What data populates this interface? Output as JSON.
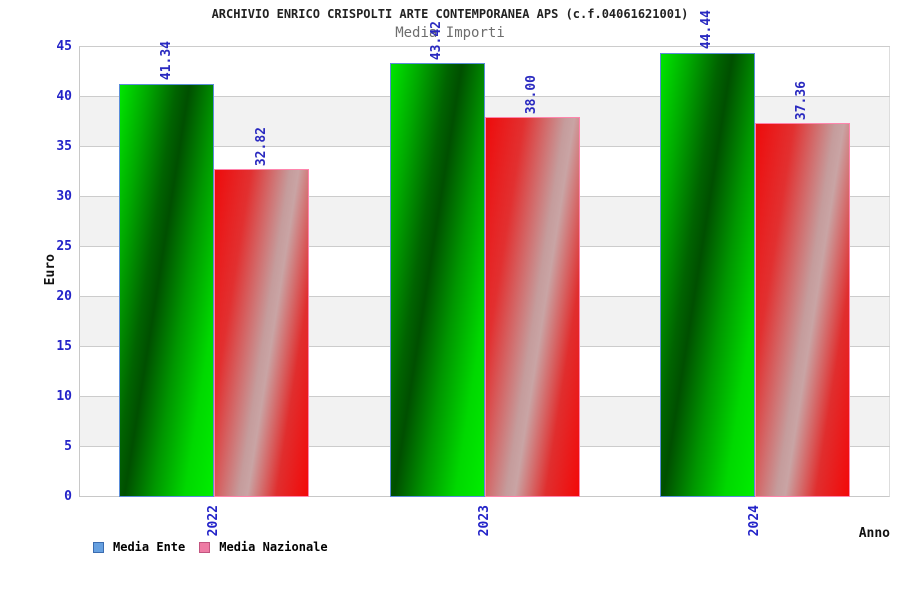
{
  "chart_data": {
    "type": "bar",
    "title": "ARCHIVIO ENRICO CRISPOLTI ARTE CONTEMPORANEA APS (c.f.04061621001)",
    "subtitle": "Media Importi",
    "xlabel": "Anno",
    "ylabel": "Euro",
    "categories": [
      "2022",
      "2023",
      "2024"
    ],
    "series": [
      {
        "name": "Media Ente",
        "values": [
          41.34,
          43.42,
          44.44
        ],
        "legend_color": "#66a0e0",
        "bar_style": "green-cylinder",
        "outline_color": "#5b8dd9"
      },
      {
        "name": "Media Nazionale",
        "values": [
          32.82,
          38.0,
          37.36
        ],
        "legend_color": "#ee7ba4",
        "bar_style": "red-cylinder",
        "outline_color": "#ff85ad"
      }
    ],
    "value_labels": [
      [
        "41.34",
        "43.42",
        "44.44"
      ],
      [
        "32.82",
        "38.00",
        "37.36"
      ]
    ],
    "ylim": [
      0,
      45
    ],
    "yticks": [
      0,
      5,
      10,
      15,
      20,
      25,
      30,
      35,
      40,
      45
    ],
    "grid": "horizontal",
    "band_color": "#f2f2f2",
    "grid_color": "#cccccc",
    "tick_label_color": "#2323c8",
    "value_label_color": "#2a2ac0",
    "legend_position": "bottom-left"
  }
}
